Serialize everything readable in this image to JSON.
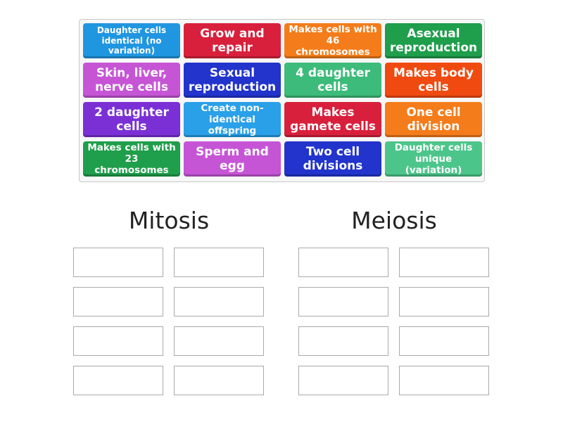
{
  "tiles": [
    {
      "label": "Daughter cells identical (no variation)",
      "color": "#2196e0"
    },
    {
      "label": "Grow and repair",
      "color": "#d8203c"
    },
    {
      "label": "Makes cells with 46 chromosomes",
      "color": "#f57c1a"
    },
    {
      "label": "Asexual reproduction",
      "color": "#1f9e4b"
    },
    {
      "label": "Skin, liver, nerve cells",
      "color": "#c655d6"
    },
    {
      "label": "Sexual reproduction",
      "color": "#2234cc"
    },
    {
      "label": "4 daughter cells",
      "color": "#3dbb7a"
    },
    {
      "label": "Makes body cells",
      "color": "#f04a10"
    },
    {
      "label": "2 daughter cells",
      "color": "#7b30d6"
    },
    {
      "label": "Create non-identical offspring",
      "color": "#2aa0e8"
    },
    {
      "label": "Makes gamete cells",
      "color": "#d8203c"
    },
    {
      "label": "One cell division",
      "color": "#f57c1a"
    },
    {
      "label": "Makes cells with 23 chromosomes",
      "color": "#1f9e4b"
    },
    {
      "label": "Sperm and egg",
      "color": "#c655d6"
    },
    {
      "label": "Two cell divisions",
      "color": "#2234cc"
    },
    {
      "label": "Daughter cells unique (variation)",
      "color": "#4cc58a"
    }
  ],
  "groups": [
    {
      "title": "Mitosis"
    },
    {
      "title": "Meiosis"
    }
  ]
}
